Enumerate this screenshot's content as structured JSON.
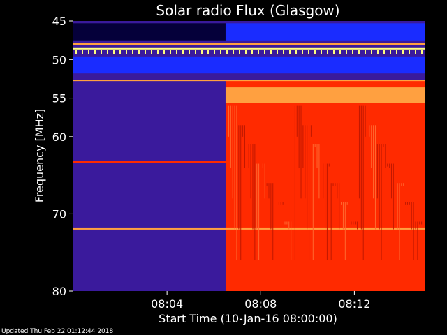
{
  "footer": "Updated Thu Feb 22 01:12:44 2018",
  "chart_data": {
    "type": "heatmap",
    "title": "Solar radio Flux (Glasgow)",
    "ylabel": "Frequency [MHz]",
    "xlabel": "Start Time (10-Jan-16 08:00:00)",
    "x_unit": "minutes after 08:00",
    "xlim": [
      0,
      15
    ],
    "ylim": [
      45,
      80
    ],
    "y_ticks": [
      {
        "value": 45,
        "label": "45"
      },
      {
        "value": 50,
        "label": "50"
      },
      {
        "value": 55,
        "label": "55"
      },
      {
        "value": 60,
        "label": "60"
      },
      {
        "value": 70,
        "label": "70"
      },
      {
        "value": 80,
        "label": "80"
      }
    ],
    "x_ticks": [
      {
        "value": 4,
        "label": "08:04"
      },
      {
        "value": 8,
        "label": "08:08"
      },
      {
        "value": 12,
        "label": "08:12"
      }
    ],
    "transition_time": 6.5,
    "colors": {
      "background": "#000000",
      "low": "#3a1a9c",
      "blue_band": "#1a2cff",
      "high": "#ff2a00",
      "bright": "#ffa040",
      "hot": "#ffff80"
    }
  }
}
